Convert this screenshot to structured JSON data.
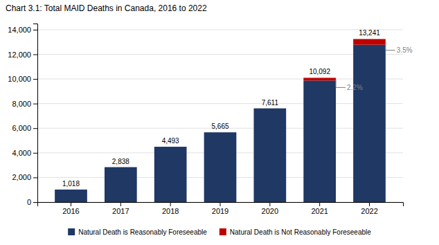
{
  "chart_data": {
    "type": "bar",
    "stacked": true,
    "title": "Chart 3.1: Total MAID Deaths in Canada, 2016 to 2022",
    "categories": [
      "2016",
      "2017",
      "2018",
      "2019",
      "2020",
      "2021",
      "2022"
    ],
    "series": [
      {
        "name": "Natural Death is Reasonably Foreseeable",
        "color": "#1f3864",
        "values": [
          1018,
          2838,
          4493,
          5665,
          7611,
          9870,
          12778
        ]
      },
      {
        "name": "Natural Death is Not Reasonably Foreseeable",
        "color": "#c00000",
        "values": [
          0,
          0,
          0,
          0,
          0,
          222,
          463
        ]
      }
    ],
    "totals": [
      1018,
      2838,
      4493,
      5665,
      7611,
      10092,
      13241
    ],
    "total_labels": [
      "1,018",
      "2,838",
      "4,493",
      "5,665",
      "7,611",
      "10,092",
      "13,241"
    ],
    "annotations": [
      {
        "text": "2.2%",
        "category": "2021"
      },
      {
        "text": "3.5%",
        "category": "2022"
      }
    ],
    "ylim": [
      0,
      14500
    ],
    "yticks": [
      0,
      {
        "value": 2000,
        "label": "2,000"
      },
      {
        "value": 4000,
        "label": "4,000"
      },
      {
        "value": 6000,
        "label": "6,000"
      },
      {
        "value": 8000,
        "label": "8,000"
      },
      {
        "value": 10000,
        "label": "10,000"
      },
      {
        "value": 12000,
        "label": "12,000"
      },
      {
        "value": 14000,
        "label": "14,000"
      }
    ],
    "grid": true,
    "legend": "bottom"
  }
}
